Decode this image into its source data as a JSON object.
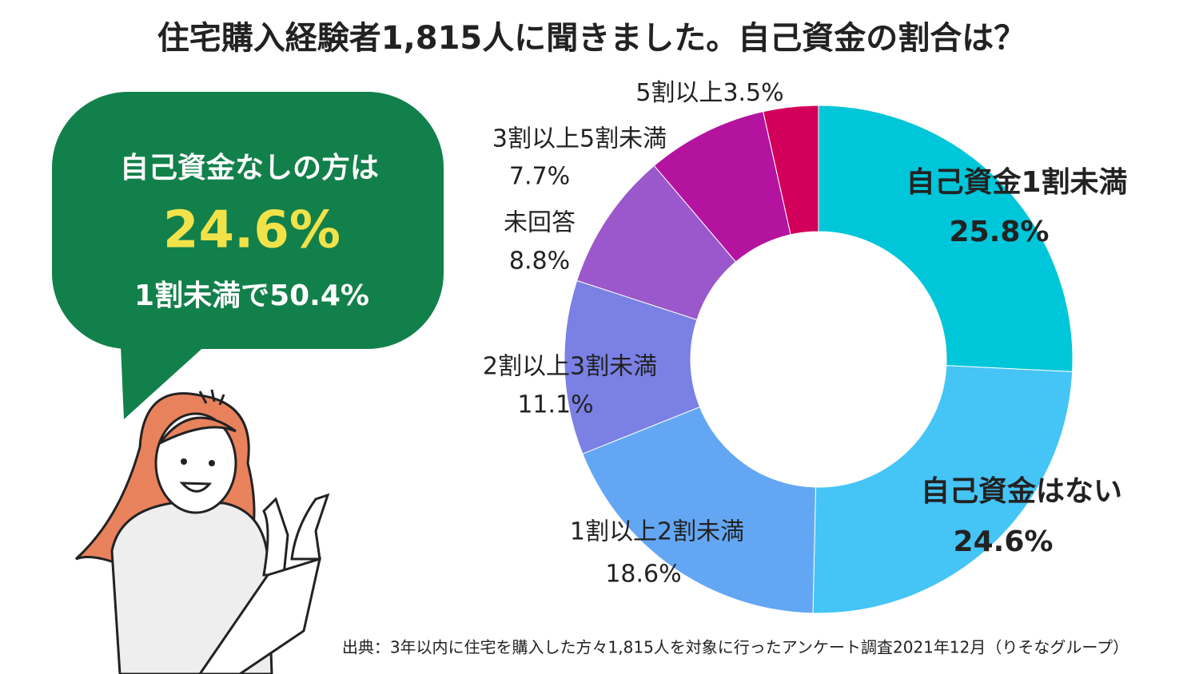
{
  "chart_data": {
    "type": "donut",
    "title": "住宅購入経験者1,815人に聞きました。自己資金の割合は？",
    "categories": [
      "自己資金1割未満",
      "自己資金はない",
      "1割以上2割未満",
      "2割以上3割未満",
      "未回答",
      "3割以上5割未満",
      "5割以上"
    ],
    "values": [
      25.8,
      24.6,
      18.6,
      11.1,
      8.8,
      7.7,
      3.5
    ],
    "value_labels": [
      "25.8%",
      "24.6%",
      "18.6%",
      "11.1%",
      "8.8%",
      "7.7%",
      "3.5%"
    ],
    "colors": [
      "#00c6d9",
      "#45c4f6",
      "#63a7f4",
      "#7a80e4",
      "#9a58cc",
      "#b4139f",
      "#d2005a"
    ],
    "annotations": [
      "自己資金なしの方は",
      "24.6%",
      "1割未満で50.4%"
    ],
    "source": "出典：3年以内に住宅を購入した方々1,815人を対象に行ったアンケート調査2021年12月（りそなグループ）"
  }
}
